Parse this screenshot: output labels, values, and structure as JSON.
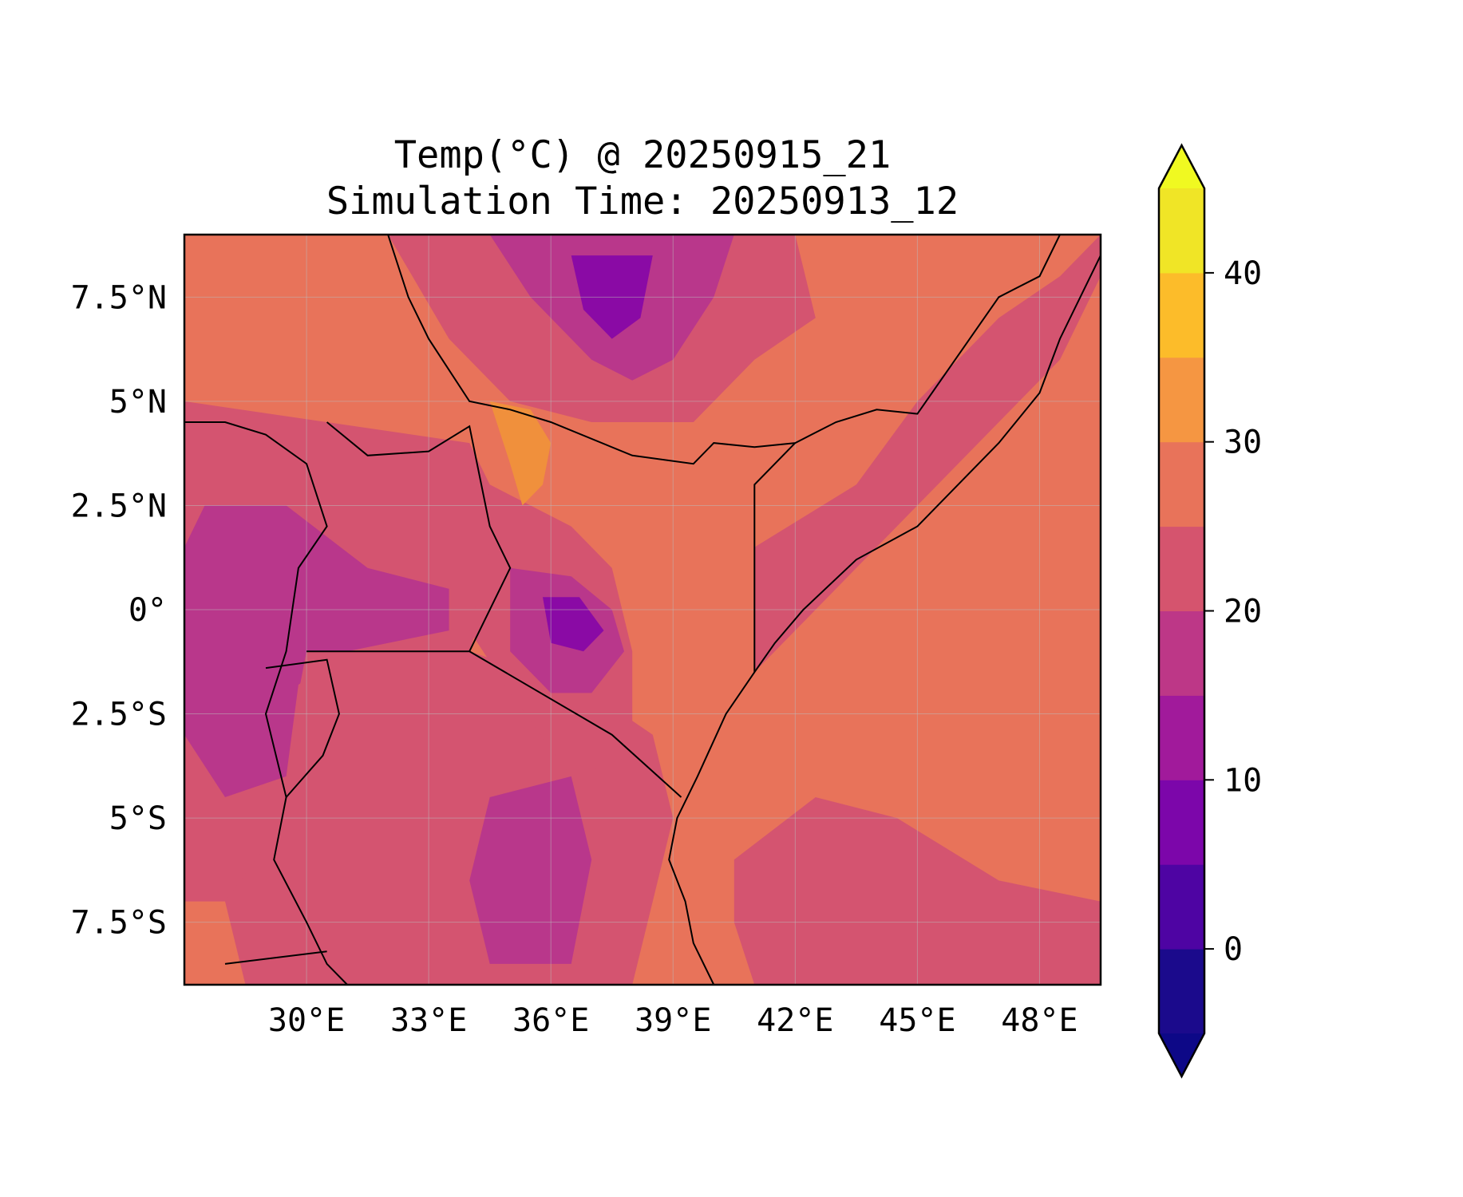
{
  "title": {
    "line1": "Temp(°C) @ 20250915_21",
    "line2": "Simulation Time: 20250913_12"
  },
  "map": {
    "lon_range": [
      27.0,
      49.5
    ],
    "lat_range": [
      -9.0,
      9.0
    ],
    "lon_ticks": [
      {
        "value": 30,
        "label": "30°E"
      },
      {
        "value": 33,
        "label": "33°E"
      },
      {
        "value": 36,
        "label": "36°E"
      },
      {
        "value": 39,
        "label": "39°E"
      },
      {
        "value": 42,
        "label": "42°E"
      },
      {
        "value": 45,
        "label": "45°E"
      },
      {
        "value": 48,
        "label": "48°E"
      }
    ],
    "lat_ticks": [
      {
        "value": 7.5,
        "label": "7.5°N"
      },
      {
        "value": 5,
        "label": "5°N"
      },
      {
        "value": 2.5,
        "label": "2.5°N"
      },
      {
        "value": 0,
        "label": "0°"
      },
      {
        "value": -2.5,
        "label": "2.5°S"
      },
      {
        "value": -5,
        "label": "5°S"
      },
      {
        "value": -7.5,
        "label": "7.5°S"
      }
    ],
    "gridlines": true,
    "background_level_color": "#e8735a",
    "regions": [
      {
        "name": "sudan-ethiopia-highland-cool",
        "color": "#d45470",
        "polygon": [
          [
            32.0,
            9.0
          ],
          [
            42.0,
            9.0
          ],
          [
            42.5,
            7.0
          ],
          [
            41.0,
            6.0
          ],
          [
            39.5,
            4.5
          ],
          [
            37.0,
            4.5
          ],
          [
            35.0,
            5.0
          ],
          [
            33.5,
            6.5
          ]
        ]
      },
      {
        "name": "ethiopia-highland-cooler",
        "color": "#b9378b",
        "polygon": [
          [
            34.5,
            9.0
          ],
          [
            40.5,
            9.0
          ],
          [
            40.0,
            7.5
          ],
          [
            39.0,
            6.0
          ],
          [
            38.0,
            5.5
          ],
          [
            37.0,
            6.0
          ],
          [
            35.5,
            7.5
          ]
        ]
      },
      {
        "name": "ethiopia-highland-coldest",
        "color": "#8a0aa5",
        "polygon": [
          [
            36.5,
            8.5
          ],
          [
            38.5,
            8.5
          ],
          [
            38.2,
            7.0
          ],
          [
            37.5,
            6.5
          ],
          [
            36.8,
            7.2
          ]
        ]
      },
      {
        "name": "uganda-rwanda-cool",
        "color": "#d45470",
        "polygon": [
          [
            27.0,
            5.0
          ],
          [
            30.5,
            4.5
          ],
          [
            34.0,
            4.0
          ],
          [
            35.0,
            2.0
          ],
          [
            34.5,
            0.5
          ],
          [
            34.0,
            -1.0
          ],
          [
            31.0,
            -1.0
          ],
          [
            30.0,
            -2.0
          ],
          [
            30.0,
            -5.0
          ],
          [
            29.5,
            -7.0
          ],
          [
            27.0,
            -7.0
          ]
        ]
      },
      {
        "name": "western-rift-cooler",
        "color": "#b9378b",
        "polygon": [
          [
            27.5,
            2.5
          ],
          [
            29.5,
            2.5
          ],
          [
            31.5,
            1.0
          ],
          [
            33.5,
            0.5
          ],
          [
            33.5,
            -0.5
          ],
          [
            31.0,
            -1.0
          ],
          [
            29.8,
            -1.8
          ],
          [
            29.5,
            -4.0
          ],
          [
            28.0,
            -4.5
          ],
          [
            27.0,
            -3.0
          ],
          [
            27.0,
            1.5
          ]
        ]
      },
      {
        "name": "tanzania-interior-cool",
        "color": "#d45470",
        "polygon": [
          [
            30.0,
            -1.0
          ],
          [
            34.0,
            -1.0
          ],
          [
            37.0,
            -2.0
          ],
          [
            38.5,
            -3.0
          ],
          [
            39.0,
            -5.0
          ],
          [
            38.5,
            -7.0
          ],
          [
            38.0,
            -9.0
          ],
          [
            28.5,
            -9.0
          ],
          [
            28.0,
            -7.0
          ],
          [
            29.5,
            -5.0
          ],
          [
            29.8,
            -2.0
          ]
        ]
      },
      {
        "name": "kenya-highland-cool",
        "color": "#d45470",
        "polygon": [
          [
            34.5,
            3.0
          ],
          [
            36.5,
            2.0
          ],
          [
            37.5,
            1.0
          ],
          [
            38.0,
            -1.0
          ],
          [
            38.0,
            -3.5
          ],
          [
            36.5,
            -4.0
          ],
          [
            35.0,
            -2.0
          ],
          [
            34.0,
            -0.5
          ],
          [
            34.5,
            1.5
          ]
        ]
      },
      {
        "name": "kenya-highland-cooler",
        "color": "#b9378b",
        "polygon": [
          [
            35.0,
            1.0
          ],
          [
            36.5,
            0.8
          ],
          [
            37.5,
            0.0
          ],
          [
            37.8,
            -1.0
          ],
          [
            37.0,
            -2.0
          ],
          [
            36.0,
            -2.0
          ],
          [
            35.0,
            -1.0
          ]
        ]
      },
      {
        "name": "kenya-highland-coldest",
        "color": "#8a0aa5",
        "polygon": [
          [
            35.8,
            0.3
          ],
          [
            36.7,
            0.3
          ],
          [
            37.3,
            -0.5
          ],
          [
            36.8,
            -1.0
          ],
          [
            36.0,
            -0.8
          ]
        ]
      },
      {
        "name": "tanzania-central-cooler",
        "color": "#b9378b",
        "polygon": [
          [
            34.5,
            -4.5
          ],
          [
            36.5,
            -4.0
          ],
          [
            37.0,
            -6.0
          ],
          [
            36.5,
            -8.5
          ],
          [
            34.5,
            -8.5
          ],
          [
            34.0,
            -6.5
          ]
        ]
      },
      {
        "name": "somalia-coastal-strip-cool",
        "color": "#d45470",
        "polygon": [
          [
            41.0,
            1.5
          ],
          [
            43.5,
            3.0
          ],
          [
            45.0,
            5.0
          ],
          [
            47.0,
            7.0
          ],
          [
            48.5,
            8.0
          ],
          [
            49.5,
            9.0
          ],
          [
            49.5,
            8.0
          ],
          [
            48.5,
            6.0
          ],
          [
            46.5,
            4.0
          ],
          [
            45.0,
            2.5
          ],
          [
            43.5,
            1.0
          ],
          [
            42.0,
            -0.5
          ],
          [
            41.0,
            -1.5
          ]
        ]
      },
      {
        "name": "indian-ocean-south-cool",
        "color": "#d45470",
        "polygon": [
          [
            40.5,
            -6.0
          ],
          [
            42.5,
            -4.5
          ],
          [
            44.5,
            -5.0
          ],
          [
            47.0,
            -6.5
          ],
          [
            49.5,
            -7.0
          ],
          [
            49.5,
            -9.0
          ],
          [
            41.0,
            -9.0
          ],
          [
            40.5,
            -7.5
          ]
        ]
      },
      {
        "name": "rift-valley-warm",
        "color": "#f0903c",
        "polygon": [
          [
            34.5,
            5.0
          ],
          [
            35.5,
            4.8
          ],
          [
            36.0,
            4.0
          ],
          [
            35.8,
            3.0
          ],
          [
            35.3,
            2.5
          ],
          [
            35.0,
            3.5
          ]
        ]
      }
    ],
    "coastline": [
      [
        40.0,
        -9.0
      ],
      [
        39.5,
        -8.0
      ],
      [
        39.3,
        -7.0
      ],
      [
        38.9,
        -6.0
      ],
      [
        39.1,
        -5.0
      ],
      [
        39.6,
        -4.0
      ],
      [
        40.3,
        -2.5
      ],
      [
        41.0,
        -1.5
      ],
      [
        41.5,
        -0.8
      ],
      [
        42.2,
        0.0
      ],
      [
        43.5,
        1.2
      ],
      [
        45.0,
        2.0
      ],
      [
        46.0,
        3.0
      ],
      [
        47.0,
        4.0
      ],
      [
        48.0,
        5.2
      ],
      [
        48.5,
        6.5
      ],
      [
        49.0,
        7.5
      ],
      [
        49.5,
        8.5
      ],
      [
        49.5,
        9.0
      ]
    ],
    "borders": [
      [
        [
          32.0,
          9.0
        ],
        [
          32.5,
          7.5
        ],
        [
          33.0,
          6.5
        ],
        [
          34.0,
          5.0
        ],
        [
          35.0,
          4.8
        ],
        [
          36.0,
          4.5
        ],
        [
          38.0,
          3.7
        ],
        [
          39.5,
          3.5
        ],
        [
          40.0,
          4.0
        ],
        [
          41.0,
          3.9
        ],
        [
          42.0,
          4.0
        ],
        [
          43.0,
          4.5
        ],
        [
          44.0,
          4.8
        ],
        [
          45.0,
          4.7
        ],
        [
          47.0,
          7.5
        ],
        [
          48.0,
          8.0
        ],
        [
          48.5,
          9.0
        ]
      ],
      [
        [
          41.0,
          -1.5
        ],
        [
          41.0,
          3.0
        ],
        [
          42.0,
          4.0
        ]
      ],
      [
        [
          30.5,
          4.5
        ],
        [
          31.5,
          3.7
        ],
        [
          33.0,
          3.8
        ],
        [
          34.0,
          4.4
        ],
        [
          34.5,
          2.0
        ],
        [
          35.0,
          1.0
        ],
        [
          34.0,
          -1.0
        ]
      ],
      [
        [
          30.0,
          -1.0
        ],
        [
          34.0,
          -1.0
        ],
        [
          37.5,
          -3.0
        ],
        [
          39.2,
          -4.5
        ]
      ],
      [
        [
          27.0,
          4.5
        ],
        [
          28.0,
          4.5
        ],
        [
          29.0,
          4.2
        ],
        [
          30.0,
          3.5
        ],
        [
          30.5,
          2.0
        ],
        [
          29.8,
          1.0
        ],
        [
          29.5,
          -1.0
        ],
        [
          29.0,
          -2.5
        ],
        [
          29.5,
          -4.5
        ],
        [
          29.2,
          -6.0
        ],
        [
          30.0,
          -7.5
        ],
        [
          30.5,
          -8.5
        ],
        [
          31.0,
          -9.0
        ]
      ],
      [
        [
          29.0,
          -1.4
        ],
        [
          30.5,
          -1.2
        ],
        [
          30.8,
          -2.5
        ],
        [
          30.4,
          -3.5
        ],
        [
          29.5,
          -4.5
        ]
      ],
      [
        [
          28.0,
          -8.5
        ],
        [
          30.5,
          -8.2
        ]
      ],
      [
        [
          37.0,
          9.0
        ],
        [
          43.0,
          9.0
        ]
      ]
    ]
  },
  "colorbar": {
    "levels": [
      -5,
      0,
      5,
      10,
      15,
      20,
      25,
      30,
      35,
      40,
      45
    ],
    "colors": [
      "#1b0a8c",
      "#4e04a3",
      "#7c06aa",
      "#a11a9b",
      "#bd3787",
      "#d5546e",
      "#e8735a",
      "#f59642",
      "#fcbc2a",
      "#f0e526"
    ],
    "under_color": "#0d0887",
    "over_color": "#f0f921",
    "ticks": [
      {
        "value": 0,
        "label": "0"
      },
      {
        "value": 10,
        "label": "10"
      },
      {
        "value": 20,
        "label": "20"
      },
      {
        "value": 30,
        "label": "30"
      },
      {
        "value": 40,
        "label": "40"
      }
    ]
  }
}
